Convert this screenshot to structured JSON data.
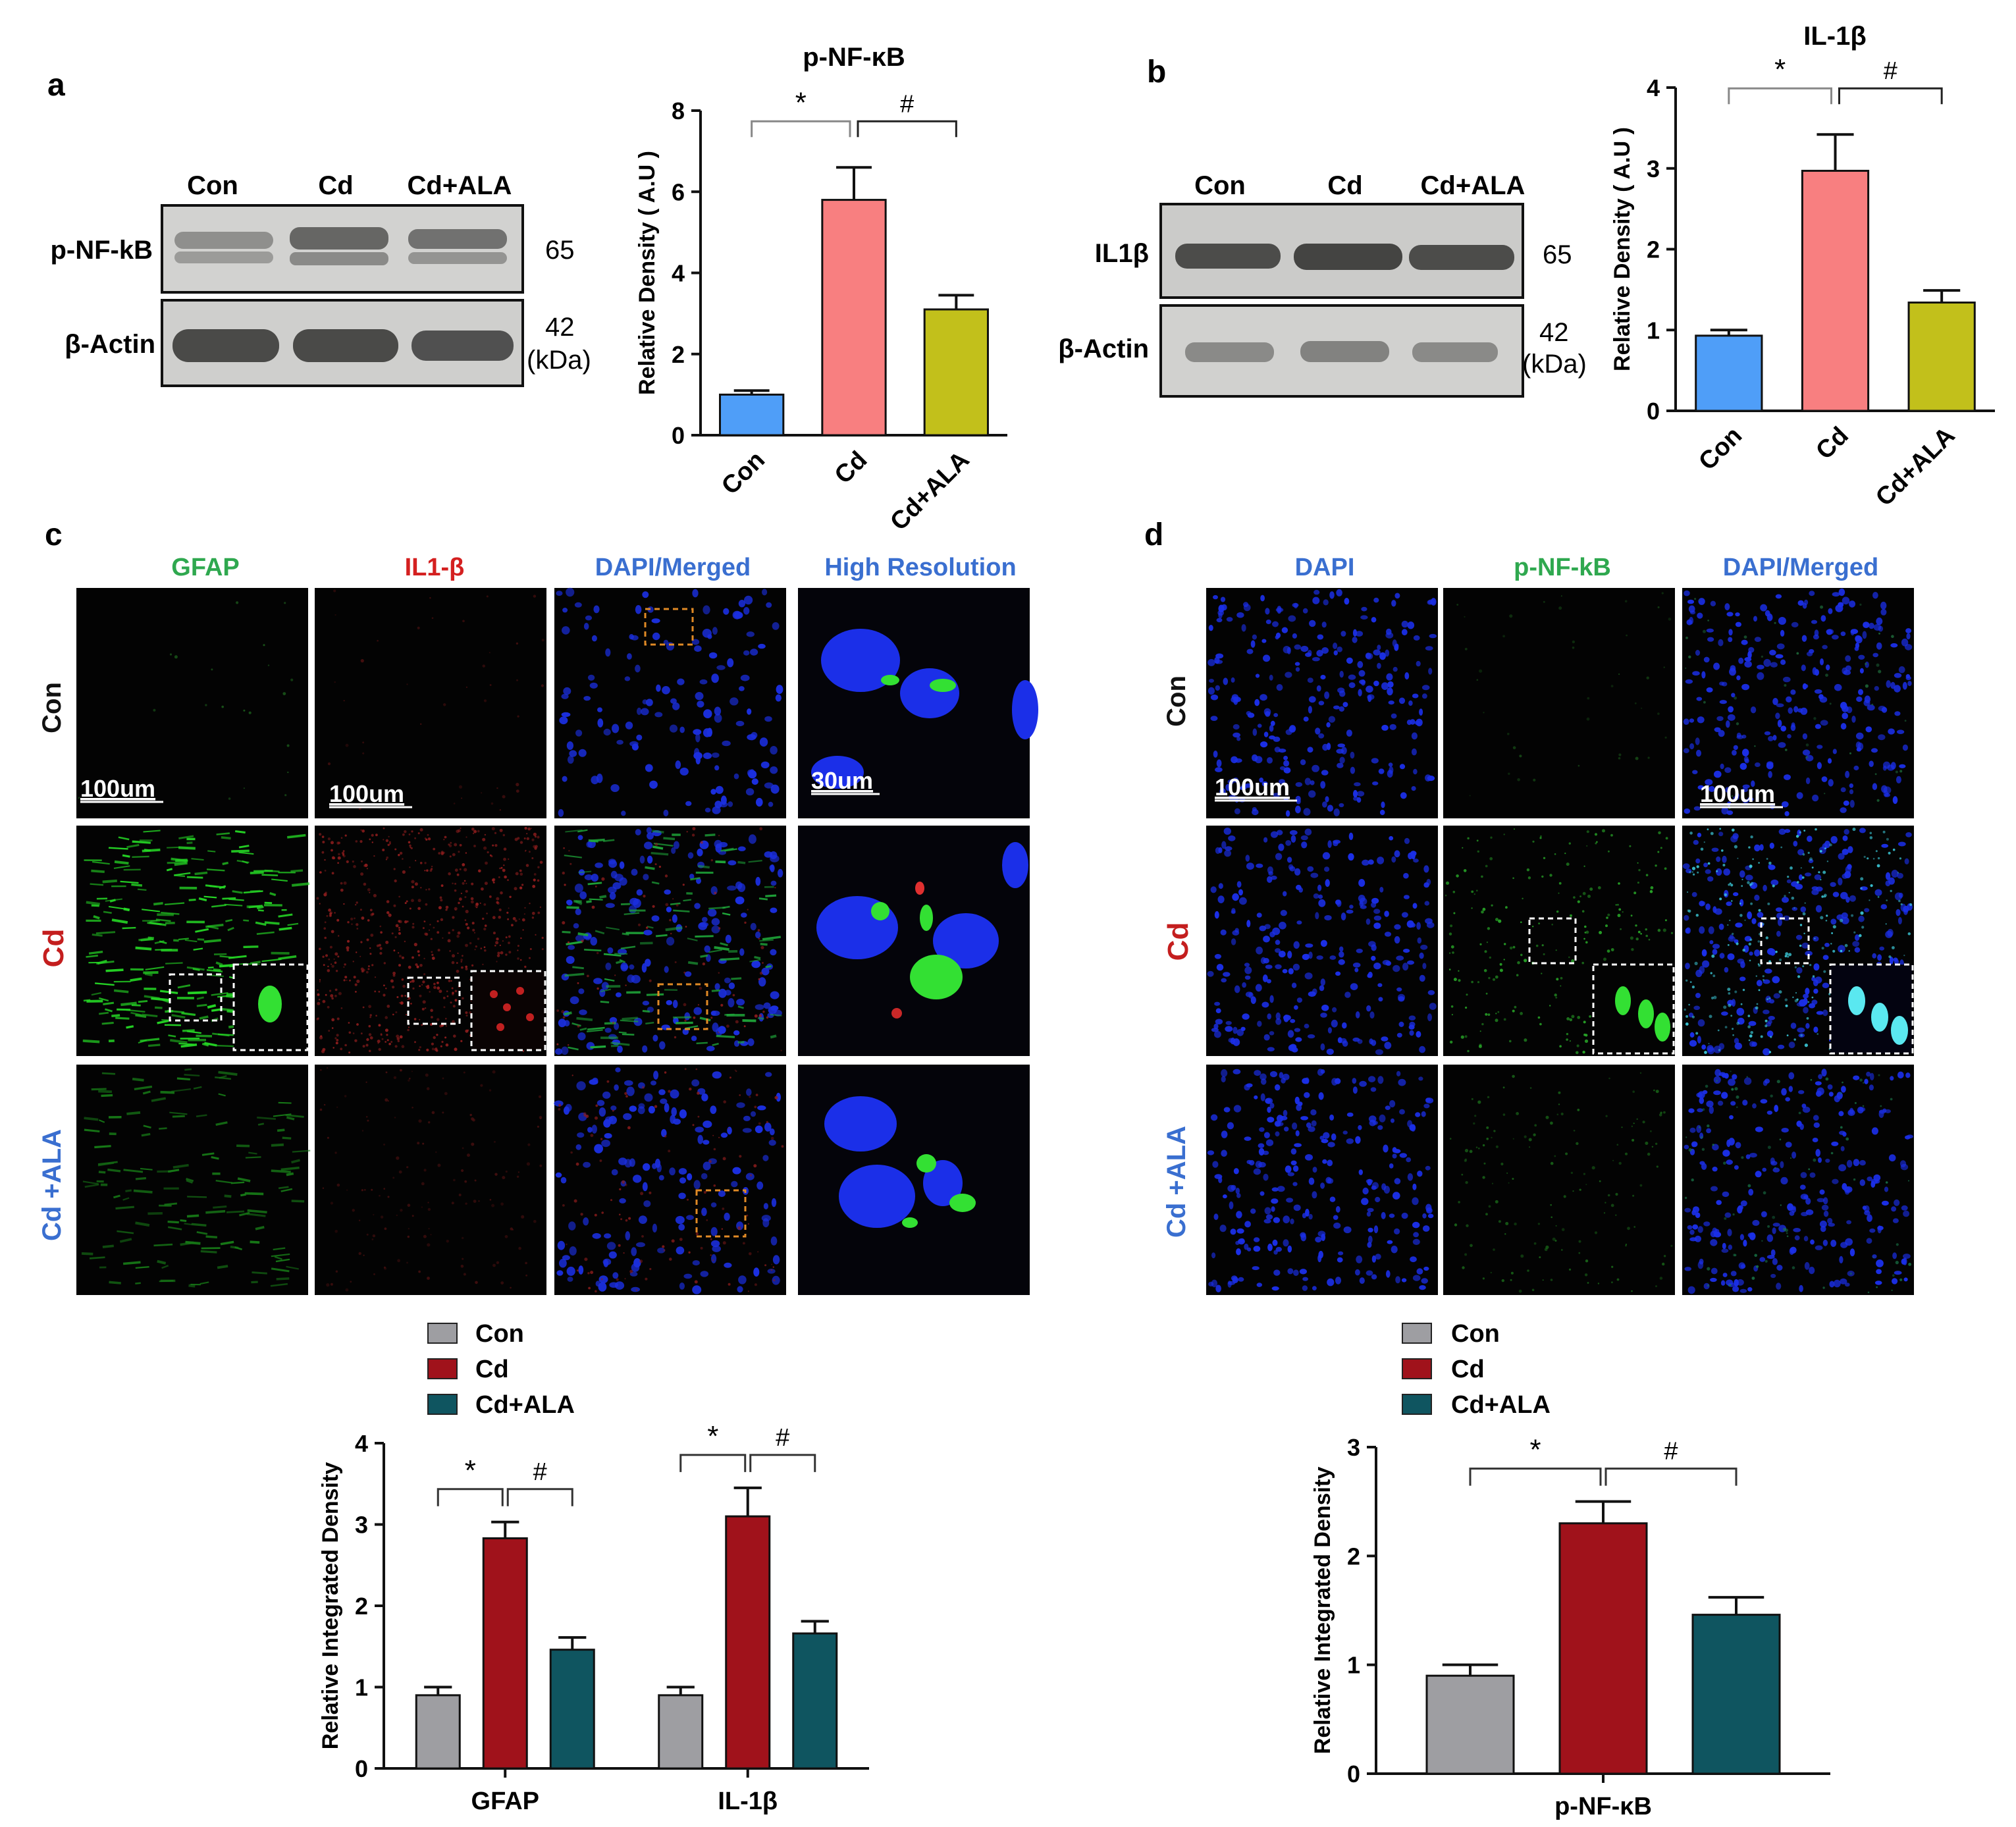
{
  "panels": {
    "a": {
      "letter": "a",
      "blot": {
        "lanes": [
          "Con",
          "Cd",
          "Cd+ALA"
        ],
        "rows": [
          {
            "label": "p-NF-kB",
            "mw": "65"
          },
          {
            "label": "β-Actin",
            "mw": "42"
          }
        ],
        "unit": "(kDa)"
      }
    },
    "b": {
      "letter": "b",
      "blot": {
        "lanes": [
          "Con",
          "Cd",
          "Cd+ALA"
        ],
        "rows": [
          {
            "label": "IL1β",
            "mw": "65"
          },
          {
            "label": "β-Actin",
            "mw": "42"
          }
        ],
        "unit": "(kDa)"
      }
    },
    "c": {
      "letter": "c",
      "columns": [
        {
          "label": "GFAP",
          "color": "#2fa84f"
        },
        {
          "label": "IL1-β",
          "color": "#d42020"
        },
        {
          "label": "DAPI/Merged",
          "color": "#3a6fd0"
        },
        {
          "label": "High Resolution",
          "color": "#3a6fd0"
        }
      ],
      "rows": [
        {
          "label": "Con",
          "color": "#111111"
        },
        {
          "label": "Cd",
          "color": "#c41e1e"
        },
        {
          "label": "Cd +ALA",
          "color": "#3a6fd0"
        }
      ],
      "scalebars": [
        "100um",
        "100um",
        "30um"
      ]
    },
    "d": {
      "letter": "d",
      "columns": [
        {
          "label": "DAPI",
          "color": "#3a6fd0"
        },
        {
          "label": "p-NF-kB",
          "color": "#2fa84f"
        },
        {
          "label": "DAPI/Merged",
          "color": "#3a6fd0"
        }
      ],
      "rows": [
        {
          "label": "Con",
          "color": "#111111"
        },
        {
          "label": "Cd",
          "color": "#c41e1e"
        },
        {
          "label": "Cd +ALA",
          "color": "#3a6fd0"
        }
      ],
      "scalebars": [
        "100um",
        "100um"
      ]
    }
  },
  "legend": {
    "items": [
      {
        "label": "Con",
        "color": "#9e9ea2"
      },
      {
        "label": "Cd",
        "color": "#a0121b"
      },
      {
        "label": "Cd+ALA",
        "color": "#0f5560"
      }
    ]
  },
  "chart_data": [
    {
      "id": "a_chart",
      "type": "bar",
      "title": "p-NF-κB",
      "ylabel": "Relative Density ( A.U )",
      "ylim": [
        0,
        8
      ],
      "yticks": [
        0,
        2,
        4,
        6,
        8
      ],
      "categories": [
        "Con",
        "Cd",
        "Cd+ALA"
      ],
      "values": [
        1.0,
        5.8,
        3.1
      ],
      "errors": [
        0.1,
        0.8,
        0.35
      ],
      "colors": [
        "#4f9ef8",
        "#f87f80",
        "#c2c01b"
      ],
      "significance": [
        "*",
        "#"
      ]
    },
    {
      "id": "b_chart",
      "type": "bar",
      "title": "IL-1β",
      "ylabel": "Relative Density ( A.U )",
      "ylim": [
        0,
        4
      ],
      "yticks": [
        0,
        1,
        2,
        3,
        4
      ],
      "categories": [
        "Con",
        "Cd",
        "Cd+ALA"
      ],
      "values": [
        0.93,
        2.97,
        1.34
      ],
      "errors": [
        0.07,
        0.45,
        0.15
      ],
      "colors": [
        "#4f9ef8",
        "#f87f80",
        "#c2c01b"
      ],
      "significance": [
        "*",
        "#"
      ]
    },
    {
      "id": "c_chart",
      "type": "bar",
      "title": "",
      "ylabel": "Relative Integrated Density",
      "ylim": [
        0,
        4
      ],
      "yticks": [
        0,
        1,
        2,
        3,
        4
      ],
      "categories": [
        "GFAP",
        "IL-1β"
      ],
      "series": [
        {
          "name": "Con",
          "values": [
            0.9,
            0.9
          ],
          "errors": [
            0.1,
            0.1
          ]
        },
        {
          "name": "Cd",
          "values": [
            2.83,
            3.1
          ],
          "errors": [
            0.2,
            0.35
          ]
        },
        {
          "name": "Cd+ALA",
          "values": [
            1.46,
            1.66
          ],
          "errors": [
            0.15,
            0.15
          ]
        }
      ],
      "significance": [
        "*",
        "#",
        "*",
        "#"
      ]
    },
    {
      "id": "d_chart",
      "type": "bar",
      "title": "",
      "ylabel": "Relative Integrated Density",
      "ylim": [
        0,
        3
      ],
      "yticks": [
        0,
        1,
        2,
        3
      ],
      "categories": [
        "p-NF-κB"
      ],
      "series": [
        {
          "name": "Con",
          "values": [
            0.9
          ],
          "errors": [
            0.1
          ]
        },
        {
          "name": "Cd",
          "values": [
            2.3
          ],
          "errors": [
            0.2
          ]
        },
        {
          "name": "Cd+ALA",
          "values": [
            1.46
          ],
          "errors": [
            0.16
          ]
        }
      ],
      "significance": [
        "*",
        "#"
      ]
    }
  ]
}
